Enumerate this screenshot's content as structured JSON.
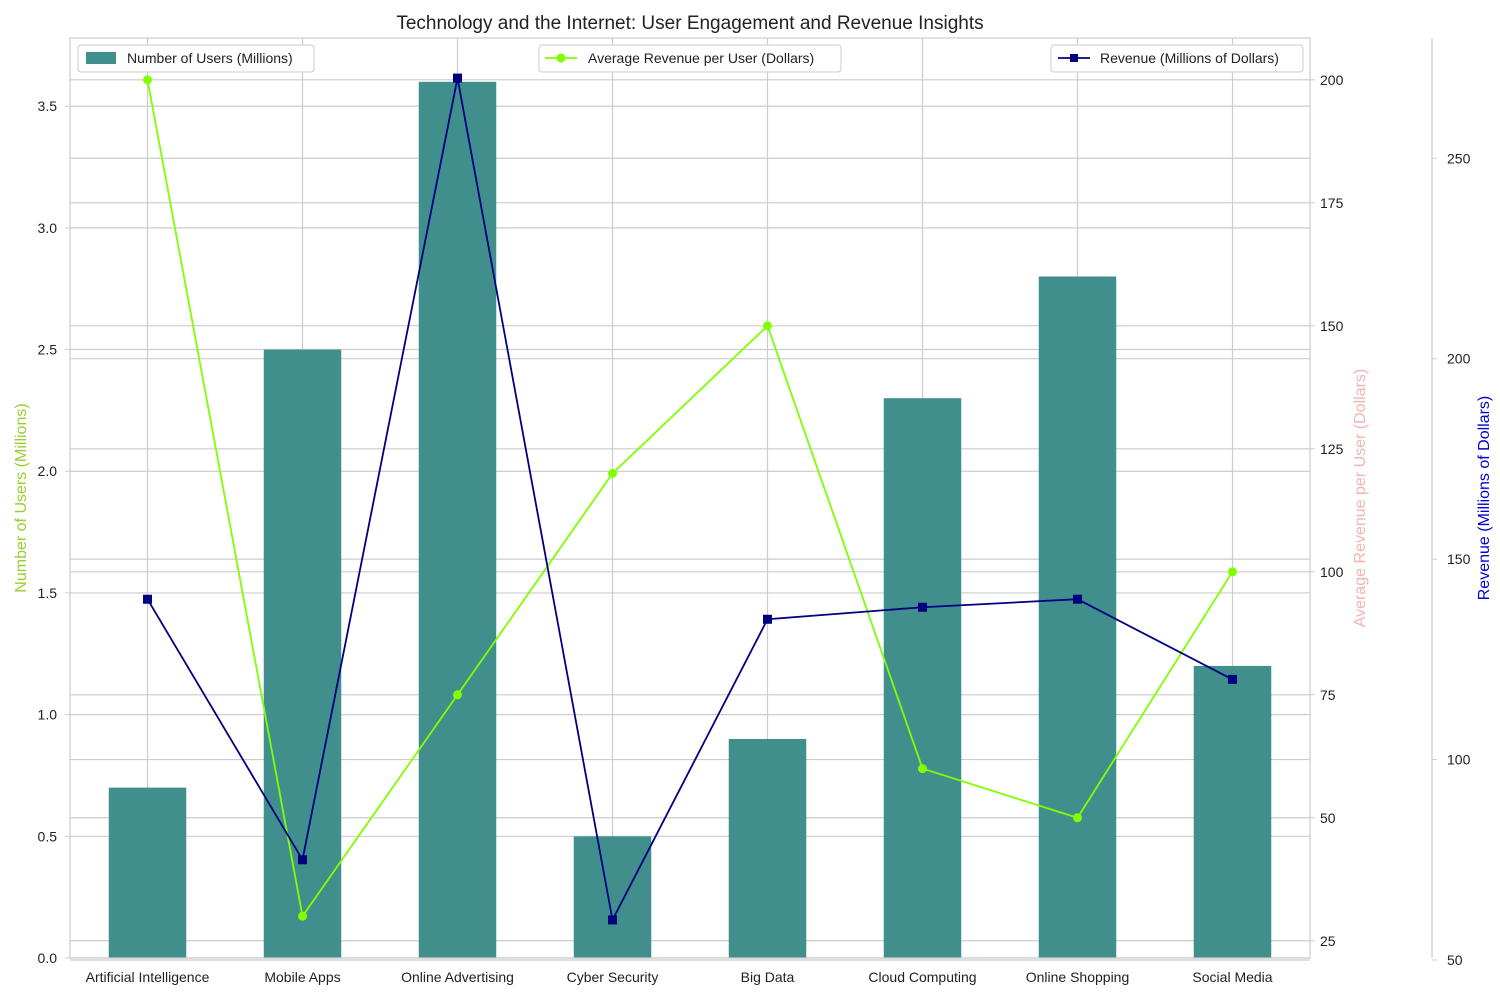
{
  "chart_data": {
    "type": "bar",
    "title": "Technology and the Internet: User Engagement and Revenue Insights",
    "categories": [
      "Artificial Intelligence",
      "Mobile Apps",
      "Online Advertising",
      "Cyber Security",
      "Big Data",
      "Cloud Computing",
      "Online Shopping",
      "Social Media"
    ],
    "series": [
      {
        "name": "Number of Users (Millions)",
        "type": "bar",
        "axis": "left",
        "color": "#418f8c",
        "values": [
          0.7,
          2.5,
          3.6,
          0.5,
          0.9,
          2.3,
          2.8,
          1.2
        ]
      },
      {
        "name": "Average Revenue per User (Dollars)",
        "type": "line",
        "marker": "circle",
        "axis": "right",
        "color": "#7fff00",
        "values": [
          200,
          30,
          75,
          120,
          150,
          60,
          50,
          100
        ]
      },
      {
        "name": "Revenue (Millions of Dollars)",
        "type": "line",
        "marker": "square",
        "axis": "far-right",
        "color": "#000080",
        "values": [
          140,
          75,
          270,
          60,
          135,
          138,
          140,
          120
        ]
      }
    ],
    "axes": {
      "left": {
        "label": "Number of Users (Millions)",
        "label_color": "#9acd32",
        "ylim": [
          0,
          3.78
        ],
        "ticks": [
          0.0,
          0.5,
          1.0,
          1.5,
          2.0,
          2.5,
          3.0,
          3.5
        ],
        "tick_labels": [
          "0.0",
          "0.5",
          "1.0",
          "1.5",
          "2.0",
          "2.5",
          "3.0",
          "3.5"
        ]
      },
      "right": {
        "label": "Average Revenue per User (Dollars)",
        "label_color": "#f4b4b0",
        "ylim": [
          21.5,
          208.5
        ],
        "ticks": [
          25,
          50,
          75,
          100,
          125,
          150,
          175,
          200
        ],
        "tick_labels": [
          "25",
          "50",
          "75",
          "100",
          "125",
          "150",
          "175",
          "200"
        ]
      },
      "far_right": {
        "label": "Revenue (Millions of Dollars)",
        "label_color": "#0000cd",
        "ylim": [
          50.5,
          280
        ],
        "ticks": [
          50,
          100,
          150,
          200,
          250
        ],
        "tick_labels": [
          "50",
          "100",
          "150",
          "200",
          "250"
        ]
      }
    },
    "grid": true,
    "legends": [
      "upper left",
      "upper center",
      "upper right"
    ]
  }
}
